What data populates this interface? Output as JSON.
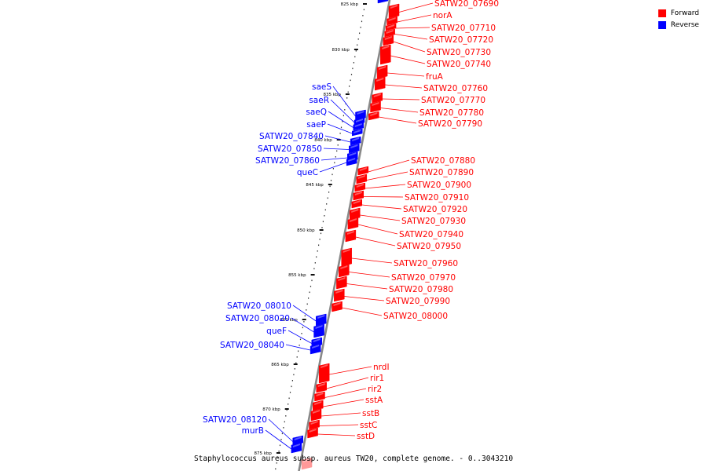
{
  "caption": "Staphylococcus aureus subsp. aureus TW20, complete genome. - 0..3043210",
  "legend": [
    {
      "label": "Forward",
      "color": "#ff0000"
    },
    {
      "label": "Reverse",
      "color": "#0000ff"
    }
  ],
  "ticks": [
    "825 kbp",
    "830 kbp",
    "835 kbp",
    "840 kbp",
    "845 kbp",
    "850 kbp",
    "855 kbp",
    "860 kbp",
    "865 kbp",
    "870 kbp",
    "875 kbp"
  ],
  "forward_genes": [
    "SATW20_07690",
    "norA",
    "SATW20_07710",
    "SATW20_07720",
    "SATW20_07730",
    "SATW20_07740",
    "fruA",
    "SATW20_07760",
    "SATW20_07770",
    "SATW20_07780",
    "SATW20_07790",
    "SATW20_07880",
    "SATW20_07890",
    "SATW20_07900",
    "SATW20_07910",
    "SATW20_07920",
    "SATW20_07930",
    "SATW20_07940",
    "SATW20_07950",
    "SATW20_07960",
    "SATW20_07970",
    "SATW20_07980",
    "SATW20_07990",
    "SATW20_08000",
    "nrdI",
    "rir1",
    "rir2",
    "sstA",
    "sstB",
    "sstC",
    "sstD"
  ],
  "reverse_genes": [
    "saeS",
    "saeR",
    "saeQ",
    "saeP",
    "SATW20_07840",
    "SATW20_07850",
    "SATW20_07860",
    "queC",
    "SATW20_08010",
    "SATW20_08020",
    "queF",
    "SATW20_08040",
    "SATW20_08120",
    "murB"
  ],
  "colors": {
    "forward": "#ff0000",
    "reverse": "#0000ff",
    "backbone": "#888888"
  }
}
